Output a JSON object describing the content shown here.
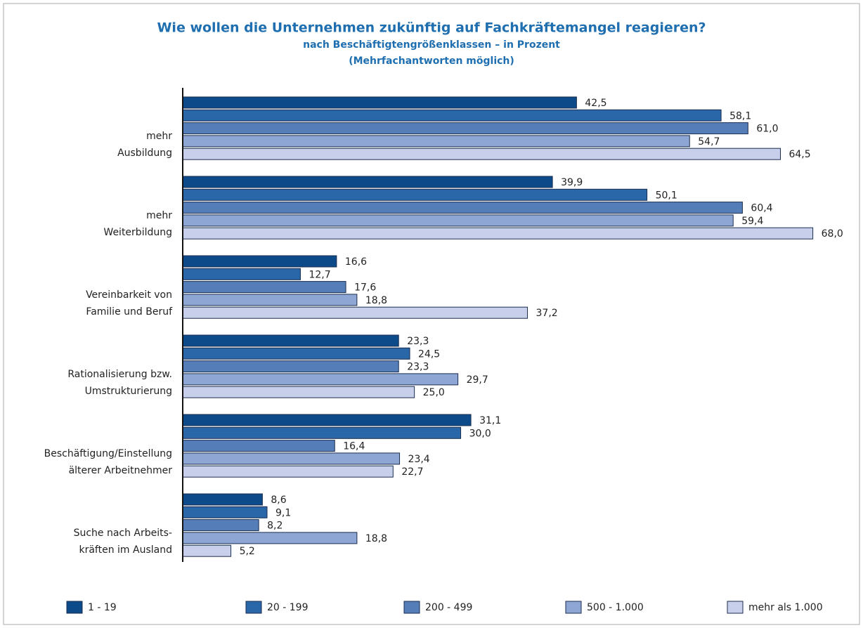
{
  "chart_data": {
    "type": "barh",
    "title": "Wie wollen die Unternehmen zukünftig auf Fachkräftemangel reagieren?",
    "subtitle": [
      "nach Beschäftigtengrößenklassen – in Prozent",
      "(Mehrfachantworten möglich)"
    ],
    "categories": [
      [
        "mehr",
        "Ausbildung"
      ],
      [
        "mehr",
        "Weiterbildung"
      ],
      [
        "Vereinbarkeit von",
        "Familie und Beruf"
      ],
      [
        "Rationalisierung bzw.",
        "Umstrukturierung"
      ],
      [
        "Beschäftigung/Einstellung",
        "älterer Arbeitnehmer"
      ],
      [
        "Suche nach Arbeits-",
        "kräften im Ausland"
      ]
    ],
    "xlim": [
      0,
      70
    ],
    "series": [
      {
        "name": "1 - 19",
        "color": "#0d4a8a",
        "values": [
          42.5,
          39.9,
          16.6,
          23.3,
          31.1,
          8.6
        ],
        "value_labels": [
          "42,5",
          "39,9",
          "16,6",
          "23,3",
          "31,1",
          "8,6"
        ]
      },
      {
        "name": "20 - 199",
        "color": "#2a67a8",
        "values": [
          58.1,
          50.1,
          12.7,
          24.5,
          30.0,
          9.1
        ],
        "value_labels": [
          "58,1",
          "50,1",
          "12,7",
          "24,5",
          "30,0",
          "9,1"
        ]
      },
      {
        "name": "200 - 499",
        "color": "#557db8",
        "values": [
          61.0,
          60.4,
          17.6,
          23.3,
          16.4,
          8.2
        ],
        "value_labels": [
          "61,0",
          "60,4",
          "17,6",
          "23,3",
          "16,4",
          "8,2"
        ]
      },
      {
        "name": "500 - 1.000",
        "color": "#8ea6d3",
        "values": [
          54.7,
          59.4,
          18.8,
          29.7,
          23.4,
          18.8
        ],
        "value_labels": [
          "54,7",
          "59,4",
          "18,8",
          "29,7",
          "23,4",
          "18,8"
        ]
      },
      {
        "name": "mehr als 1.000",
        "color": "#c8cfea",
        "values": [
          64.5,
          68.0,
          37.2,
          25.0,
          22.7,
          5.2
        ],
        "value_labels": [
          "64,5",
          "68,0",
          "37,2",
          "25,0",
          "22,7",
          "5,2"
        ]
      }
    ],
    "legend": "bottom"
  }
}
